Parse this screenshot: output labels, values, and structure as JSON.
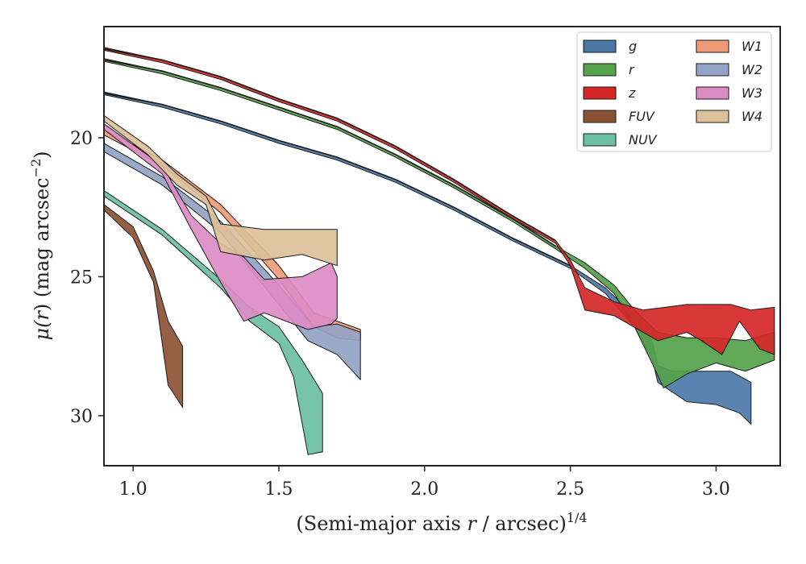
{
  "chart_data": {
    "type": "area",
    "xlabel_main": "(Semi-major axis ",
    "xlabel_var": "r",
    "xlabel_tail": " / arcsec)",
    "xlabel_sup": "1/4",
    "ylabel_main": "μ(",
    "ylabel_var": "r",
    "ylabel_tail": ") (mag arcsec",
    "ylabel_sup": "−2",
    "ylabel_close": ")",
    "xlim": [
      0.9,
      3.22
    ],
    "ylim": [
      31.8,
      16.0
    ],
    "y_inverted": true,
    "xticks": [
      1.0,
      1.5,
      2.0,
      2.5,
      3.0
    ],
    "xtick_labels": [
      "1.0",
      "1.5",
      "2.0",
      "2.5",
      "3.0"
    ],
    "yticks": [
      20,
      25,
      30
    ],
    "ytick_labels": [
      "20",
      "25",
      "30"
    ],
    "grid": false,
    "legend_position": "top-right",
    "legend_columns": 2,
    "series": [
      {
        "name": "g",
        "color": "#4c78a8",
        "upper": [
          [
            0.9,
            18.35
          ],
          [
            1.1,
            18.8
          ],
          [
            1.3,
            19.4
          ],
          [
            1.5,
            20.1
          ],
          [
            1.7,
            20.7
          ],
          [
            1.9,
            21.5
          ],
          [
            2.1,
            22.5
          ],
          [
            2.3,
            23.6
          ],
          [
            2.5,
            24.6
          ],
          [
            2.62,
            25.4
          ],
          [
            2.72,
            26.4
          ],
          [
            2.78,
            27.3
          ],
          [
            2.8,
            28.2
          ],
          [
            2.85,
            28.4
          ],
          [
            2.95,
            28.4
          ],
          [
            3.05,
            28.4
          ],
          [
            3.12,
            28.8
          ]
        ],
        "lower": [
          [
            0.9,
            18.45
          ],
          [
            1.1,
            18.9
          ],
          [
            1.3,
            19.5
          ],
          [
            1.5,
            20.2
          ],
          [
            1.7,
            20.8
          ],
          [
            1.9,
            21.6
          ],
          [
            2.1,
            22.6
          ],
          [
            2.3,
            23.7
          ],
          [
            2.5,
            24.7
          ],
          [
            2.62,
            25.6
          ],
          [
            2.72,
            26.8
          ],
          [
            2.78,
            27.9
          ],
          [
            2.8,
            28.8
          ],
          [
            2.9,
            29.5
          ],
          [
            3.0,
            29.6
          ],
          [
            3.08,
            29.9
          ],
          [
            3.12,
            30.3
          ]
        ]
      },
      {
        "name": "r",
        "color": "#54a24b",
        "upper": [
          [
            0.9,
            17.15
          ],
          [
            1.1,
            17.6
          ],
          [
            1.3,
            18.2
          ],
          [
            1.5,
            18.9
          ],
          [
            1.7,
            19.6
          ],
          [
            1.9,
            20.6
          ],
          [
            2.1,
            21.7
          ],
          [
            2.3,
            22.9
          ],
          [
            2.45,
            23.9
          ],
          [
            2.55,
            24.5
          ],
          [
            2.65,
            25.3
          ],
          [
            2.72,
            26.2
          ],
          [
            2.8,
            27.0
          ],
          [
            2.9,
            27.2
          ],
          [
            3.0,
            27.2
          ],
          [
            3.1,
            27.3
          ],
          [
            3.2,
            27.0
          ]
        ],
        "lower": [
          [
            0.9,
            17.25
          ],
          [
            1.1,
            17.7
          ],
          [
            1.3,
            18.3
          ],
          [
            1.5,
            19.0
          ],
          [
            1.7,
            19.7
          ],
          [
            1.9,
            20.7
          ],
          [
            2.1,
            21.8
          ],
          [
            2.3,
            23.0
          ],
          [
            2.45,
            24.0
          ],
          [
            2.55,
            24.7
          ],
          [
            2.65,
            25.6
          ],
          [
            2.72,
            26.8
          ],
          [
            2.78,
            28.1
          ],
          [
            2.82,
            29.0
          ],
          [
            2.9,
            28.5
          ],
          [
            3.0,
            28.1
          ],
          [
            3.1,
            28.4
          ],
          [
            3.2,
            28.0
          ]
        ]
      },
      {
        "name": "z",
        "color": "#d62728",
        "upper": [
          [
            0.9,
            16.75
          ],
          [
            1.1,
            17.2
          ],
          [
            1.3,
            17.8
          ],
          [
            1.5,
            18.6
          ],
          [
            1.7,
            19.3
          ],
          [
            1.9,
            20.3
          ],
          [
            2.1,
            21.5
          ],
          [
            2.3,
            22.8
          ],
          [
            2.45,
            23.7
          ],
          [
            2.5,
            24.4
          ],
          [
            2.55,
            25.4
          ],
          [
            2.65,
            25.9
          ],
          [
            2.75,
            26.2
          ],
          [
            2.9,
            26.0
          ],
          [
            3.05,
            26.0
          ],
          [
            3.12,
            26.2
          ],
          [
            3.2,
            26.1
          ]
        ],
        "lower": [
          [
            0.9,
            16.85
          ],
          [
            1.1,
            17.3
          ],
          [
            1.3,
            17.9
          ],
          [
            1.5,
            18.7
          ],
          [
            1.7,
            19.4
          ],
          [
            1.9,
            20.4
          ],
          [
            2.1,
            21.6
          ],
          [
            2.3,
            22.9
          ],
          [
            2.45,
            23.8
          ],
          [
            2.5,
            24.6
          ],
          [
            2.55,
            26.2
          ],
          [
            2.65,
            26.4
          ],
          [
            2.75,
            27.0
          ],
          [
            2.8,
            27.3
          ],
          [
            2.9,
            27.0
          ],
          [
            2.95,
            27.3
          ],
          [
            3.02,
            27.8
          ],
          [
            3.08,
            26.6
          ],
          [
            3.15,
            27.6
          ],
          [
            3.2,
            27.8
          ]
        ]
      },
      {
        "name": "FUV",
        "color": "#8b5133",
        "upper": [
          [
            0.9,
            22.4
          ],
          [
            1.0,
            23.2
          ],
          [
            1.07,
            24.8
          ],
          [
            1.12,
            26.6
          ],
          [
            1.17,
            27.5
          ]
        ],
        "lower": [
          [
            0.9,
            22.6
          ],
          [
            1.0,
            23.6
          ],
          [
            1.07,
            25.2
          ],
          [
            1.12,
            28.9
          ],
          [
            1.17,
            29.7
          ]
        ]
      },
      {
        "name": "NUV",
        "color": "#6dbfa4",
        "upper": [
          [
            0.9,
            21.9
          ],
          [
            1.1,
            23.3
          ],
          [
            1.3,
            25.1
          ],
          [
            1.4,
            26.1
          ],
          [
            1.5,
            26.8
          ],
          [
            1.58,
            28.0
          ],
          [
            1.65,
            29.2
          ]
        ],
        "lower": [
          [
            0.9,
            22.1
          ],
          [
            1.1,
            23.5
          ],
          [
            1.3,
            25.4
          ],
          [
            1.4,
            26.6
          ],
          [
            1.5,
            27.4
          ],
          [
            1.55,
            28.6
          ],
          [
            1.6,
            31.4
          ],
          [
            1.65,
            31.3
          ]
        ]
      },
      {
        "name": "W1",
        "color": "#ef9a76",
        "upper": [
          [
            0.9,
            19.7
          ],
          [
            1.1,
            20.8
          ],
          [
            1.3,
            22.4
          ],
          [
            1.5,
            24.6
          ],
          [
            1.62,
            26.3
          ],
          [
            1.7,
            26.6
          ],
          [
            1.78,
            26.9
          ]
        ],
        "lower": [
          [
            0.9,
            19.9
          ],
          [
            1.1,
            21.0
          ],
          [
            1.3,
            22.7
          ],
          [
            1.5,
            25.1
          ],
          [
            1.62,
            26.8
          ],
          [
            1.7,
            27.2
          ],
          [
            1.78,
            27.3
          ]
        ]
      },
      {
        "name": "W2",
        "color": "#94a3c6",
        "upper": [
          [
            0.9,
            20.2
          ],
          [
            1.1,
            21.4
          ],
          [
            1.3,
            23.0
          ],
          [
            1.5,
            25.3
          ],
          [
            1.62,
            26.8
          ],
          [
            1.7,
            26.7
          ],
          [
            1.78,
            27.0
          ]
        ],
        "lower": [
          [
            0.9,
            20.5
          ],
          [
            1.1,
            21.7
          ],
          [
            1.3,
            23.4
          ],
          [
            1.5,
            26.0
          ],
          [
            1.6,
            27.3
          ],
          [
            1.7,
            27.8
          ],
          [
            1.78,
            28.7
          ]
        ]
      },
      {
        "name": "W3",
        "color": "#dc8cc4",
        "upper": [
          [
            0.9,
            19.5
          ],
          [
            1.1,
            21.0
          ],
          [
            1.2,
            22.8
          ],
          [
            1.3,
            23.8
          ],
          [
            1.38,
            24.3
          ],
          [
            1.45,
            25.1
          ],
          [
            1.58,
            25.0
          ],
          [
            1.68,
            24.5
          ],
          [
            1.7,
            25.0
          ]
        ],
        "lower": [
          [
            0.9,
            19.7
          ],
          [
            1.1,
            21.3
          ],
          [
            1.2,
            23.3
          ],
          [
            1.3,
            25.2
          ],
          [
            1.38,
            26.6
          ],
          [
            1.45,
            26.3
          ],
          [
            1.55,
            26.7
          ],
          [
            1.6,
            26.9
          ],
          [
            1.68,
            26.7
          ],
          [
            1.7,
            26.5
          ]
        ]
      },
      {
        "name": "W4",
        "color": "#dcc09a",
        "upper": [
          [
            0.9,
            19.2
          ],
          [
            1.05,
            20.3
          ],
          [
            1.15,
            21.3
          ],
          [
            1.25,
            22.1
          ],
          [
            1.3,
            23.1
          ],
          [
            1.45,
            23.3
          ],
          [
            1.58,
            23.3
          ],
          [
            1.7,
            23.3
          ]
        ],
        "lower": [
          [
            0.9,
            19.4
          ],
          [
            1.05,
            20.6
          ],
          [
            1.15,
            21.7
          ],
          [
            1.25,
            22.4
          ],
          [
            1.3,
            24.1
          ],
          [
            1.45,
            24.4
          ],
          [
            1.58,
            24.2
          ],
          [
            1.7,
            24.6
          ]
        ]
      }
    ],
    "outer_lines": [
      {
        "name": "outer-top",
        "points": [
          [
            0.9,
            16.8
          ],
          [
            1.1,
            17.2
          ],
          [
            1.3,
            17.8
          ],
          [
            1.5,
            18.6
          ],
          [
            1.7,
            19.3
          ],
          [
            1.9,
            20.3
          ],
          [
            2.1,
            21.5
          ],
          [
            2.3,
            22.8
          ],
          [
            2.45,
            23.7
          ]
        ]
      },
      {
        "name": "outer-mid",
        "points": [
          [
            0.9,
            17.2
          ],
          [
            1.1,
            17.6
          ],
          [
            1.3,
            18.2
          ],
          [
            1.5,
            18.9
          ],
          [
            1.7,
            19.6
          ],
          [
            1.9,
            20.6
          ],
          [
            2.1,
            21.7
          ],
          [
            2.3,
            22.9
          ],
          [
            2.45,
            23.9
          ]
        ]
      },
      {
        "name": "outer-low",
        "points": [
          [
            0.9,
            18.4
          ],
          [
            1.1,
            18.8
          ],
          [
            1.3,
            19.4
          ],
          [
            1.5,
            20.1
          ],
          [
            1.7,
            20.7
          ],
          [
            1.9,
            21.5
          ],
          [
            2.1,
            22.5
          ],
          [
            2.3,
            23.6
          ],
          [
            2.5,
            24.6
          ]
        ]
      }
    ]
  }
}
